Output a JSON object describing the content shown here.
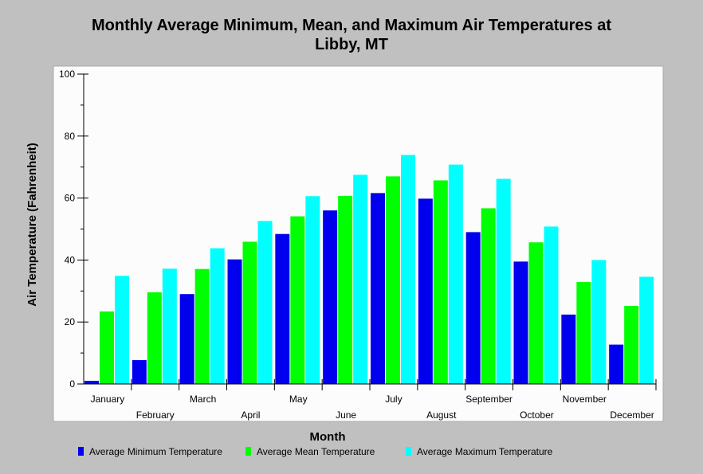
{
  "chart_data": {
    "type": "bar",
    "title_line1": "Monthly Average Minimum, Mean, and Maximum Air Temperatures at",
    "title_line2": "Libby, MT",
    "xlabel": "Month",
    "ylabel": "Air Temperature (Fahrenheit)",
    "ylim": [
      0,
      100
    ],
    "yticks": [
      0,
      20,
      40,
      60,
      80,
      100
    ],
    "grid": false,
    "legend_position": "bottom",
    "categories": [
      "January",
      "February",
      "March",
      "April",
      "May",
      "June",
      "July",
      "August",
      "September",
      "October",
      "November",
      "December"
    ],
    "series": [
      {
        "name": "Average Minimum Temperature",
        "color": "#0000ee",
        "values": [
          1,
          7.7,
          29,
          40.2,
          48.4,
          56,
          61.6,
          59.8,
          49,
          39.5,
          22.4,
          12.7
        ]
      },
      {
        "name": "Average Mean Temperature",
        "color": "#00ff00",
        "values": [
          23.4,
          29.6,
          37.1,
          45.9,
          54.1,
          60.7,
          67,
          65.7,
          56.7,
          45.7,
          32.9,
          25.2
        ]
      },
      {
        "name": "Average Maximum Temperature",
        "color": "#00ffff",
        "values": [
          34.9,
          37.2,
          43.8,
          52.6,
          60.6,
          67.5,
          73.9,
          70.8,
          66.2,
          50.8,
          40,
          34.6
        ]
      }
    ]
  }
}
